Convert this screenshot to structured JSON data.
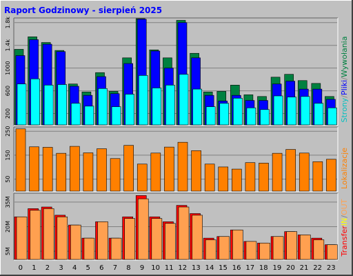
{
  "title": "Raport Godzinowy -   sierpień 2025",
  "colors": {
    "background": "#c0c0c0",
    "plot_bg": "#c0c0c0",
    "grid": "#808080",
    "title": "#0000ff",
    "hits": "#008040",
    "files": "#0000ff",
    "pages": "#00ffff",
    "sites": "#ff8000",
    "kbytes": "#ff0000",
    "kbin": "#ffff00",
    "kbout": "#ffa050"
  },
  "side_labels": {
    "top": [
      {
        "text": "Strony",
        "color": "#00c0c0"
      },
      {
        "text": "/",
        "color": "#808080"
      },
      {
        "text": "Pliki",
        "color": "#0000ff"
      },
      {
        "text": "/",
        "color": "#808080"
      },
      {
        "text": "Wywołania",
        "color": "#008040"
      }
    ],
    "middle": [
      {
        "text": "Lokalizacje",
        "color": "#ff8000"
      }
    ],
    "bottom": [
      {
        "text": "Transfer",
        "color": "#ff0000"
      },
      {
        "text": "IN",
        "color": "#ffff00"
      },
      {
        "text": "/",
        "color": "#808080"
      },
      {
        "text": "OUT",
        "color": "#ffa050"
      }
    ]
  },
  "chart_data": [
    {
      "type": "bar",
      "name": "top",
      "categories": [
        "0",
        "1",
        "2",
        "3",
        "4",
        "5",
        "6",
        "7",
        "8",
        "9",
        "10",
        "11",
        "12",
        "13",
        "14",
        "15",
        "16",
        "17",
        "18",
        "19",
        "20",
        "21",
        "22",
        "23"
      ],
      "y_ticks": [
        "200",
        "600",
        "1000",
        "1.4k",
        "1.8k"
      ],
      "y_tick_values": [
        200,
        600,
        1000,
        1400,
        1800
      ],
      "ylim": [
        0,
        1870
      ],
      "series": [
        {
          "name": "Wywołania",
          "values": [
            1330,
            1550,
            1450,
            1310,
            720,
            580,
            920,
            590,
            1180,
            1870,
            1320,
            1180,
            1840,
            1260,
            580,
            590,
            700,
            530,
            500,
            840,
            890,
            780,
            730,
            500
          ]
        },
        {
          "name": "Pliki",
          "values": [
            1220,
            1500,
            1420,
            1290,
            680,
            520,
            850,
            550,
            1080,
            1860,
            1300,
            1000,
            1800,
            1180,
            520,
            420,
            520,
            430,
            430,
            720,
            770,
            630,
            630,
            450
          ]
        },
        {
          "name": "Strony",
          "values": [
            720,
            810,
            700,
            710,
            380,
            330,
            640,
            320,
            540,
            870,
            650,
            700,
            890,
            630,
            320,
            380,
            470,
            300,
            270,
            510,
            490,
            500,
            380,
            300
          ]
        }
      ]
    },
    {
      "type": "bar",
      "name": "middle",
      "categories": [
        "0",
        "1",
        "2",
        "3",
        "4",
        "5",
        "6",
        "7",
        "8",
        "9",
        "10",
        "11",
        "12",
        "13",
        "14",
        "15",
        "16",
        "17",
        "18",
        "19",
        "20",
        "21",
        "22",
        "23"
      ],
      "y_ticks": [
        "50",
        "150",
        "250"
      ],
      "y_tick_values": [
        50,
        150,
        250
      ],
      "ylim": [
        0,
        265
      ],
      "series": [
        {
          "name": "Lokalizacje",
          "values": [
            260,
            185,
            183,
            158,
            187,
            160,
            177,
            136,
            191,
            113,
            159,
            184,
            204,
            169,
            113,
            101,
            92,
            119,
            117,
            158,
            174,
            159,
            123,
            133
          ]
        }
      ]
    },
    {
      "type": "bar",
      "name": "bottom",
      "categories": [
        "0",
        "1",
        "2",
        "3",
        "4",
        "5",
        "6",
        "7",
        "8",
        "9",
        "10",
        "11",
        "12",
        "13",
        "14",
        "15",
        "16",
        "17",
        "18",
        "19",
        "20",
        "21",
        "22",
        "23"
      ],
      "y_ticks": [
        "5M",
        "20M",
        "35M"
      ],
      "y_tick_values": [
        5,
        20,
        35
      ],
      "ylim": [
        0,
        40
      ],
      "series": [
        {
          "name": "Transfer",
          "values": [
            26,
            31,
            32,
            27,
            21,
            13,
            23,
            13,
            26,
            39,
            26,
            23,
            33,
            28,
            13,
            14,
            18,
            11,
            10,
            14,
            17,
            15,
            13,
            9
          ]
        },
        {
          "name": "OUT",
          "values": [
            26,
            30,
            31,
            26,
            21,
            13,
            23,
            13,
            25,
            37,
            25,
            22,
            32,
            27,
            12,
            14,
            18,
            11,
            10,
            14,
            17,
            15,
            12,
            9
          ]
        }
      ]
    }
  ]
}
